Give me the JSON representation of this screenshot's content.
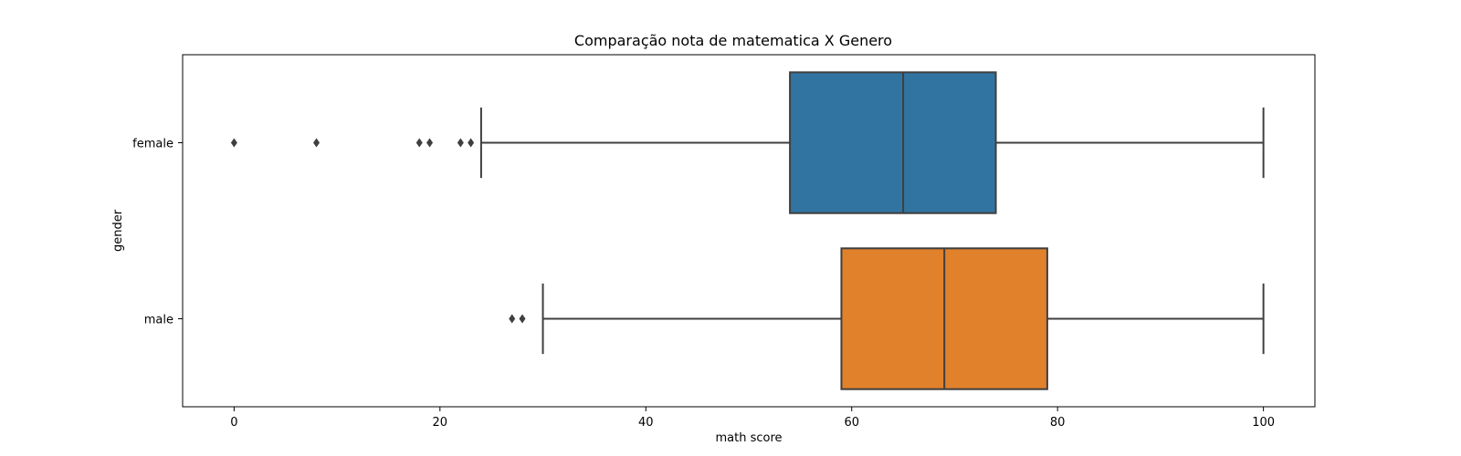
{
  "chart_data": {
    "type": "boxplot",
    "orientation": "horizontal",
    "title": "Comparação nota de matematica X Genero",
    "xlabel": "math score",
    "ylabel": "gender",
    "xlim": [
      -5,
      105
    ],
    "xticks": [
      0,
      20,
      40,
      60,
      80,
      100
    ],
    "grid": false,
    "categories": [
      "female",
      "male"
    ],
    "series": [
      {
        "category": "female",
        "color": "#3274a1",
        "whisker_low": 24,
        "q1": 54,
        "median": 65,
        "q3": 74,
        "whisker_high": 100,
        "outliers": [
          0,
          8,
          18,
          19,
          22,
          23
        ]
      },
      {
        "category": "male",
        "color": "#e1812c",
        "whisker_low": 30,
        "q1": 59,
        "median": 69,
        "q3": 79,
        "whisker_high": 100,
        "outliers": [
          27,
          28
        ]
      }
    ]
  }
}
